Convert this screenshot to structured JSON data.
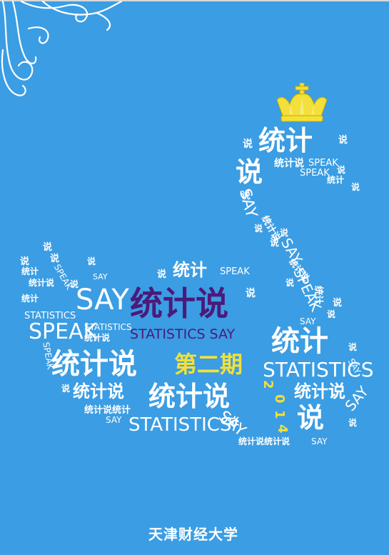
{
  "page": {
    "background": "#3b9de3",
    "title_color": "#4b1a7a",
    "highlight_color": "#f3e03a"
  },
  "title": {
    "cn": "统计说",
    "en": "STATISTICS SAY"
  },
  "issue": "第二期",
  "year": {
    "d1": "2",
    "d2": "0",
    "d3": "1",
    "d4": "4"
  },
  "footer": "天津财经大学",
  "decorations": {
    "crown": "crown-icon",
    "swirl": "swirl-ornament"
  },
  "words": {
    "tongjishuo": "统计说",
    "tongji": "统计",
    "shuo": "说",
    "say": "SAY",
    "speak": "SPEAK",
    "statistics": "STATISTICS",
    "tjs_tjs": "统计说统计",
    "tjs_tjs_s": "统计说统计说"
  }
}
